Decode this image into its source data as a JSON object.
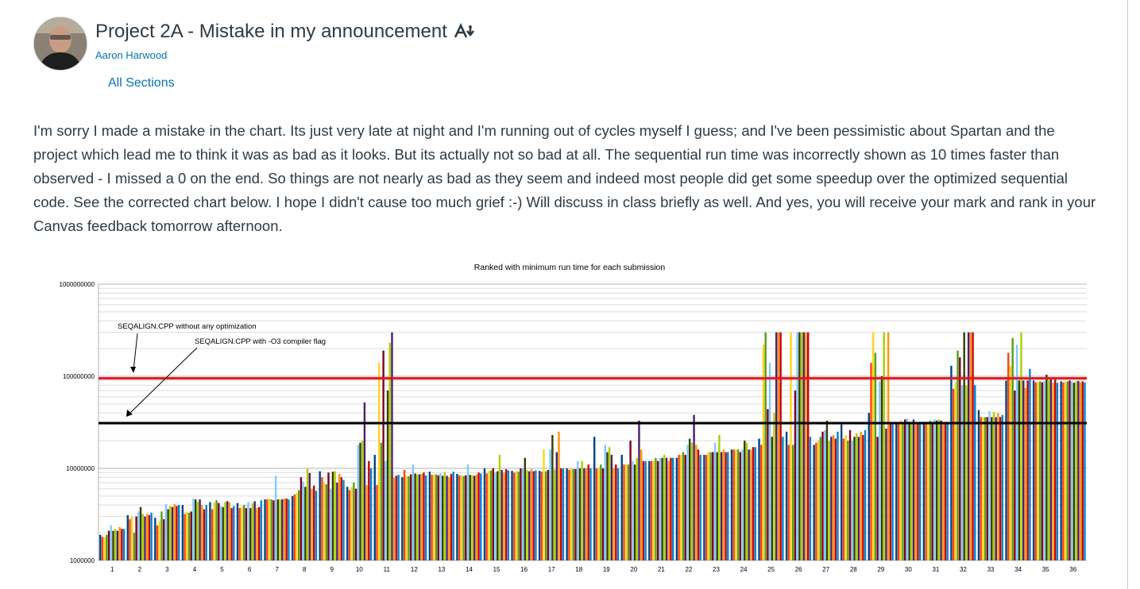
{
  "announcement": {
    "title": "Project 2A - Mistake in my announcement",
    "author": "Aaron Harwood",
    "sections": "All Sections",
    "body": "I'm sorry I made a mistake in the chart. Its just very late at night and I'm running out of cycles myself I guess; and I've been pessimistic about Spartan and the project which lead me to think it was as bad as it looks. But its actually not so bad at all. The sequential run time was incorrectly shown as 10 times faster than observed - I missed a 0 on the end. So things are not nearly as bad as they seem and indeed most people did get some speedup over the optimized sequential code. See the corrected chart below. I hope I didn't cause too much grief :-) Will discuss in class briefly as well. And yes, you will receive your mark and rank in your Canvas feedback tomorrow afternoon.",
    "icons": {
      "avatar": "avatar-photo",
      "immersive_reader": "immersive-reader-icon"
    }
  },
  "chart_data": {
    "type": "bar",
    "title": "Ranked with minimum run time for each submission",
    "xlabel": "",
    "ylabel": "",
    "yscale": "log",
    "ylim": [
      1000000,
      1000000000
    ],
    "yticks": [
      "1000000",
      "10000000",
      "100000000",
      "1000000000"
    ],
    "grid": true,
    "categories": [
      "1",
      "2",
      "3",
      "4",
      "5",
      "6",
      "7",
      "8",
      "9",
      "10",
      "11",
      "12",
      "13",
      "14",
      "15",
      "16",
      "17",
      "18",
      "19",
      "20",
      "21",
      "22",
      "23",
      "24",
      "25",
      "26",
      "27",
      "28",
      "29",
      "30",
      "31",
      "32",
      "33",
      "34",
      "35",
      "36"
    ],
    "series_colors": [
      "#004586",
      "#ff420e",
      "#ffd320",
      "#579d1c",
      "#7e0021",
      "#83caff",
      "#314004",
      "#aecf00",
      "#4b1f6f",
      "#ff950e",
      "#c5000b",
      "#0084d1"
    ],
    "bars_per_category": 12,
    "approx_values": [
      [
        1900000.0,
        1800000.0,
        1800000.0,
        1900000.0,
        2100000.0,
        2400000.0,
        2100000.0,
        2200000.0,
        2100000.0,
        2300000.0,
        2200000.0,
        2200000.0
      ],
      [
        3100000.0,
        2800000.0,
        3000000.0,
        2000000.0,
        3000000.0,
        3400000.0,
        3800000.0,
        3200000.0,
        3000000.0,
        3200000.0,
        3100000.0,
        3300000.0
      ],
      [
        2900000.0,
        2400000.0,
        2700000.0,
        3400000.0,
        2800000.0,
        4100000.0,
        3600000.0,
        3900000.0,
        3800000.0,
        4100000.0,
        3900000.0,
        4000000.0
      ],
      [
        4000000.0,
        3200000.0,
        3400000.0,
        3300000.0,
        3400000.0,
        4700000.0,
        4600000.0,
        4300000.0,
        4600000.0,
        4000000.0,
        3600000.0,
        4000000.0
      ],
      [
        4300000.0,
        3600000.0,
        4300000.0,
        4500000.0,
        4200000.0,
        3900000.0,
        3800000.0,
        4300000.0,
        4400000.0,
        4300000.0,
        3700000.0,
        3900000.0
      ],
      [
        4200000.0,
        3700000.0,
        3800000.0,
        4000000.0,
        3700000.0,
        4300000.0,
        3700000.0,
        4200000.0,
        4400000.0,
        3700000.0,
        3800000.0,
        4500000.0
      ],
      [
        4600000.0,
        4600000.0,
        4700000.0,
        4600000.0,
        4500000.0,
        8300000.0,
        4600000.0,
        4600000.0,
        4600000.0,
        4700000.0,
        4700000.0,
        4600000.0
      ],
      [
        5000000.0,
        5200000.0,
        5400000.0,
        5800000.0,
        8000000.0,
        7200000.0,
        6300000.0,
        10000000.0,
        8900000.0,
        6000000.0,
        6500000.0,
        5700000.0
      ],
      [
        9300000.0,
        8000000.0,
        7000000.0,
        6700000.0,
        9000000.0,
        6000000.0,
        9200000.0,
        9300000.0,
        7000000.0,
        8700000.0,
        8000000.0,
        7500000.0
      ],
      [
        6300000.0,
        5800000.0,
        6300000.0,
        7000000.0,
        6000000.0,
        18000000.0,
        19000000.0,
        20000000.0,
        52000000.0,
        6600000.0,
        12000000.0,
        10000000.0
      ],
      [
        14000000.0,
        6600000.0,
        140000000.0,
        19000000.0,
        190000000.0,
        12000000.0,
        70000000.0,
        230000000.0,
        300000000.0,
        7900000.0,
        8300000.0,
        8500000.0
      ],
      [
        8000000.0,
        9600000.0,
        8300000.0,
        8200000.0,
        8600000.0,
        11000000.0,
        8800000.0,
        8600000.0,
        8600000.0,
        8700000.0,
        9000000.0,
        8400000.0
      ],
      [
        9200000.0,
        8500000.0,
        8500000.0,
        8600000.0,
        8400000.0,
        8900000.0,
        8300000.0,
        9100000.0,
        8300000.0,
        8000000.0,
        8700000.0,
        9200000.0
      ],
      [
        8700000.0,
        8400000.0,
        8400000.0,
        8200000.0,
        8400000.0,
        11000000.0,
        8500000.0,
        8400000.0,
        8300000.0,
        8600000.0,
        9000000.0,
        8800000.0
      ],
      [
        10000000.0,
        8800000.0,
        9400000.0,
        9500000.0,
        10000000.0,
        9000000.0,
        9300000.0,
        14000000.0,
        9600000.0,
        9000000.0,
        9800000.0,
        9500000.0
      ],
      [
        9400000.0,
        9000000.0,
        9300000.0,
        9200000.0,
        10000000.0,
        10000000.0,
        13000000.0,
        9600000.0,
        9300000.0,
        9800000.0,
        9300000.0,
        9500000.0
      ],
      [
        9400000.0,
        9200000.0,
        16000000.0,
        9300000.0,
        9600000.0,
        16000000.0,
        23000000.0,
        9700000.0,
        15000000.0,
        25000000.0,
        10000000.0,
        9900000.0
      ],
      [
        10000000.0,
        9600000.0,
        10000000.0,
        9800000.0,
        9800000.0,
        12000000.0,
        10000000.0,
        12000000.0,
        10000000.0,
        10000000.0,
        11000000.0,
        10000000.0
      ],
      [
        22000000.0,
        10000000.0,
        10000000.0,
        11000000.0,
        10000000.0,
        18000000.0,
        15000000.0,
        17000000.0,
        14000000.0,
        10000000.0,
        11000000.0,
        10000000.0
      ],
      [
        14000000.0,
        11000000.0,
        11000000.0,
        11000000.0,
        20000000.0,
        12000000.0,
        11000000.0,
        13000000.0,
        33000000.0,
        16000000.0,
        12000000.0,
        12000000.0
      ],
      [
        12000000.0,
        12000000.0,
        12000000.0,
        13000000.0,
        12000000.0,
        13000000.0,
        13000000.0,
        14000000.0,
        13000000.0,
        12000000.0,
        13000000.0,
        13000000.0
      ],
      [
        13000000.0,
        14000000.0,
        14000000.0,
        15000000.0,
        14000000.0,
        18000000.0,
        21000000.0,
        19000000.0,
        38000000.0,
        18000000.0,
        16000000.0,
        14000000.0
      ],
      [
        14000000.0,
        14000000.0,
        15000000.0,
        15000000.0,
        15000000.0,
        19000000.0,
        15000000.0,
        23000000.0,
        15000000.0,
        16000000.0,
        15000000.0,
        15000000.0
      ],
      [
        16000000.0,
        16000000.0,
        16000000.0,
        16000000.0,
        15000000.0,
        16000000.0,
        20000000.0,
        19000000.0,
        16000000.0,
        16000000.0,
        17000000.0,
        17000000.0
      ],
      [
        21000000.0,
        18000000.0,
        220000000.0,
        300000000.0,
        44000000.0,
        140000000.0,
        22000000.0,
        40000000.0,
        300000000.0,
        300000000.0,
        300000000.0,
        22000000.0
      ],
      [
        25000000.0,
        18000000.0,
        300000000.0,
        18000000.0,
        70000000.0,
        300000000.0,
        300000000.0,
        300000000.0,
        300000000.0,
        300000000.0,
        300000000.0,
        22000000.0
      ],
      [
        18000000.0,
        19000000.0,
        20000000.0,
        22000000.0,
        25000000.0,
        26000000.0,
        33000000.0,
        20000000.0,
        22000000.0,
        23000000.0,
        21000000.0,
        25000000.0
      ],
      [
        30000000.0,
        21000000.0,
        23000000.0,
        20000000.0,
        26000000.0,
        20000000.0,
        22000000.0,
        24000000.0,
        22000000.0,
        25000000.0,
        23000000.0,
        26000000.0
      ],
      [
        40000000.0,
        140000000.0,
        300000000.0,
        180000000.0,
        22000000.0,
        88000000.0,
        100000000.0,
        300000000.0,
        27000000.0,
        300000000.0,
        32000000.0,
        30000000.0
      ],
      [
        31000000.0,
        30000000.0,
        33000000.0,
        30000000.0,
        34000000.0,
        35000000.0,
        32000000.0,
        30000000.0,
        34000000.0,
        30000000.0,
        31000000.0,
        32000000.0
      ],
      [
        31000000.0,
        32000000.0,
        31000000.0,
        33000000.0,
        32000000.0,
        34000000.0,
        33000000.0,
        34000000.0,
        33000000.0,
        30000000.0,
        31000000.0,
        32000000.0
      ],
      [
        130000000.0,
        73000000.0,
        86000000.0,
        190000000.0,
        160000000.0,
        80000000.0,
        300000000.0,
        80000000.0,
        300000000.0,
        300000000.0,
        300000000.0,
        80000000.0
      ],
      [
        43000000.0,
        36000000.0,
        36000000.0,
        36000000.0,
        36000000.0,
        42000000.0,
        36000000.0,
        41000000.0,
        36000000.0,
        40000000.0,
        36000000.0,
        38000000.0
      ],
      [
        90000000.0,
        180000000.0,
        130000000.0,
        260000000.0,
        70000000.0,
        220000000.0,
        90000000.0,
        300000000.0,
        90000000.0,
        75000000.0,
        90000000.0,
        120000000.0
      ],
      [
        90000000.0,
        86000000.0,
        87000000.0,
        88000000.0,
        86000000.0,
        89000000.0,
        104000000.0,
        90000000.0,
        95000000.0,
        85000000.0,
        92000000.0,
        85000000.0
      ],
      [
        88000000.0,
        86000000.0,
        87000000.0,
        88000000.0,
        90000000.0,
        88000000.0,
        85000000.0,
        88000000.0,
        89000000.0,
        86000000.0,
        88000000.0,
        86000000.0
      ]
    ],
    "reference_lines": [
      {
        "value": 95000000,
        "color": "#e8141c"
      },
      {
        "value": 31000000,
        "color": "#000000"
      }
    ],
    "annotations": [
      "SEQALIGN.CPP without any optimization",
      "SEQALIGN.CPP with -O3 compiler flag"
    ]
  }
}
